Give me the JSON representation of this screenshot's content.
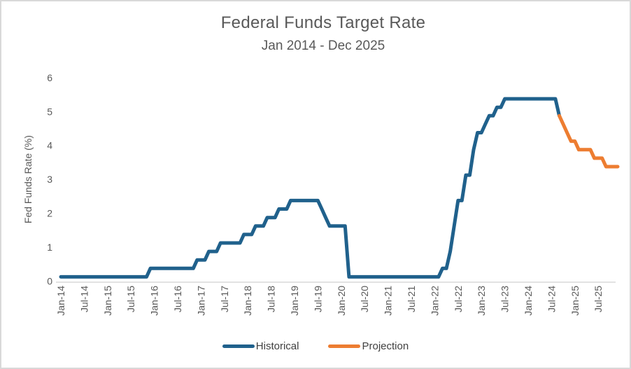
{
  "chart_data": {
    "type": "line",
    "title": "Federal Funds Target Rate",
    "subtitle": "Jan 2014 - Dec 2025",
    "ylabel": "Fed Funds Rate (%)",
    "ylim": [
      0,
      6
    ],
    "yticks": [
      0,
      1,
      2,
      3,
      4,
      5,
      6
    ],
    "x_start": "Jan-14",
    "x_end": "Dec-25",
    "x_tick_labels": [
      "Jan-14",
      "Jul-14",
      "Jan-15",
      "Jul-15",
      "Jan-16",
      "Jul-16",
      "Jan-17",
      "Jul-17",
      "Jan-18",
      "Jul-18",
      "Jan-19",
      "Jul-19",
      "Jan-20",
      "Jul-20",
      "Jan-21",
      "Jul-21",
      "Jan-22",
      "Jul-22",
      "Jan-23",
      "Jul-23",
      "Jan-24",
      "Jul-24",
      "Jan-25",
      "Jul-25"
    ],
    "x_unit": "month",
    "grid": "off",
    "legend_position": "bottom-center",
    "colors": {
      "axis_line": "#D9D9D9",
      "tick_text": "#595959",
      "title_text": "#595959",
      "legend_text": "#404040"
    },
    "series": [
      {
        "name": "Historical",
        "color": "#20618C",
        "start_month": "Jan-14",
        "monthly_values": [
          0.125,
          0.125,
          0.125,
          0.125,
          0.125,
          0.125,
          0.125,
          0.125,
          0.125,
          0.125,
          0.125,
          0.125,
          0.125,
          0.125,
          0.125,
          0.125,
          0.125,
          0.125,
          0.125,
          0.125,
          0.125,
          0.125,
          0.125,
          0.375,
          0.375,
          0.375,
          0.375,
          0.375,
          0.375,
          0.375,
          0.375,
          0.375,
          0.375,
          0.375,
          0.375,
          0.625,
          0.625,
          0.625,
          0.875,
          0.875,
          0.875,
          1.125,
          1.125,
          1.125,
          1.125,
          1.125,
          1.125,
          1.375,
          1.375,
          1.375,
          1.625,
          1.625,
          1.625,
          1.875,
          1.875,
          1.875,
          2.125,
          2.125,
          2.125,
          2.375,
          2.375,
          2.375,
          2.375,
          2.375,
          2.375,
          2.375,
          2.375,
          2.125,
          1.875,
          1.625,
          1.625,
          1.625,
          1.625,
          1.625,
          0.125,
          0.125,
          0.125,
          0.125,
          0.125,
          0.125,
          0.125,
          0.125,
          0.125,
          0.125,
          0.125,
          0.125,
          0.125,
          0.125,
          0.125,
          0.125,
          0.125,
          0.125,
          0.125,
          0.125,
          0.125,
          0.125,
          0.125,
          0.125,
          0.375,
          0.375,
          0.875,
          1.625,
          2.375,
          2.375,
          3.125,
          3.125,
          3.875,
          4.375,
          4.375,
          4.625,
          4.875,
          4.875,
          5.125,
          5.125,
          5.375,
          5.375,
          5.375,
          5.375,
          5.375,
          5.375,
          5.375,
          5.375,
          5.375,
          5.375,
          5.375,
          5.375,
          5.375,
          5.375,
          4.875
        ]
      },
      {
        "name": "Projection",
        "color": "#ED7D31",
        "start_month": "Sep-24",
        "monthly_values": [
          4.875,
          4.625,
          4.375,
          4.125,
          4.125,
          3.875,
          3.875,
          3.875,
          3.875,
          3.625,
          3.625,
          3.625,
          3.375,
          3.375,
          3.375,
          3.375
        ]
      }
    ]
  }
}
